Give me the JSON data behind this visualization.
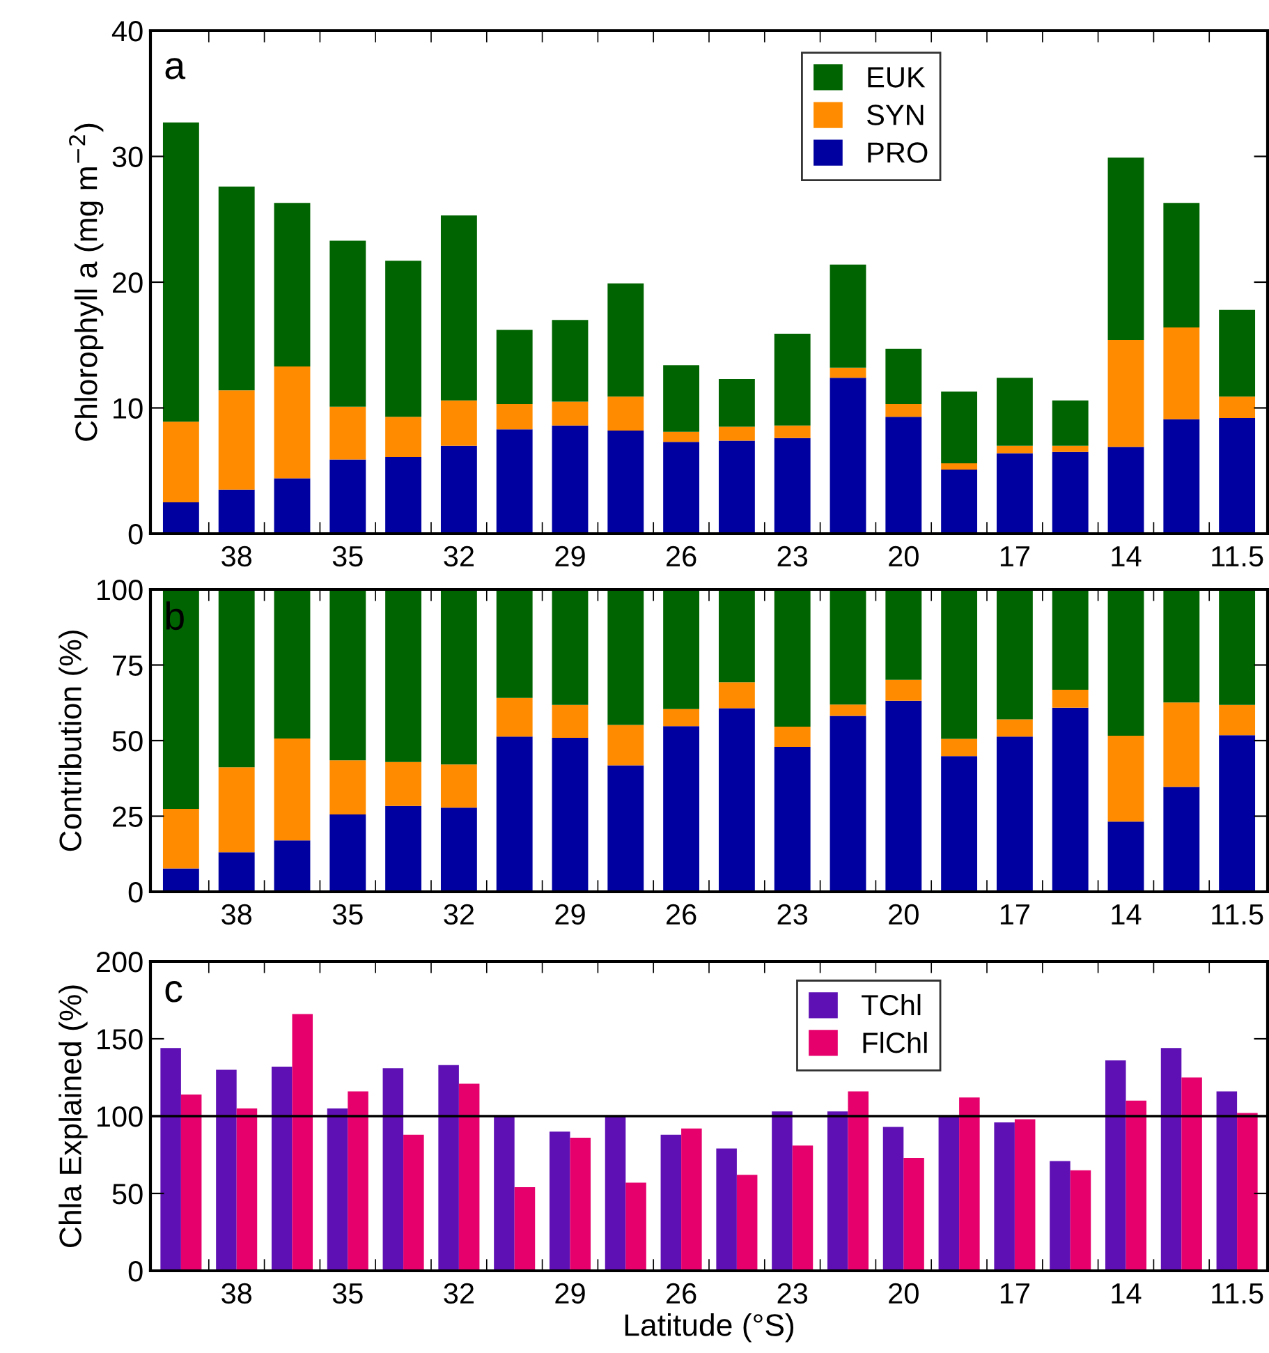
{
  "chart_data": [
    {
      "type": "bar",
      "stacked": true,
      "ylabel": "Chlorophyll a (mg m$^{−2}$)",
      "annotations": [
        "a"
      ],
      "categories": [
        null,
        "38",
        null,
        "35",
        null,
        "32",
        null,
        "29",
        null,
        "26",
        null,
        "23",
        null,
        "20",
        null,
        "17",
        null,
        "14",
        null,
        "11.5"
      ],
      "ylim": [
        0,
        40
      ],
      "yticks": [
        0,
        10,
        20,
        30,
        40
      ],
      "legend": "top right",
      "grid": false,
      "series": [
        {
          "name": "PRO",
          "color": "#0000a0",
          "values": [
            2.5,
            3.5,
            4.4,
            5.9,
            6.1,
            7.0,
            8.3,
            8.6,
            8.2,
            7.3,
            7.4,
            7.6,
            12.4,
            9.3,
            5.1,
            6.4,
            6.5,
            6.9,
            9.1,
            9.2
          ]
        },
        {
          "name": "SYN",
          "color": "#ff8c00",
          "values": [
            6.4,
            7.9,
            8.9,
            4.2,
            3.2,
            3.6,
            2.0,
            1.9,
            2.7,
            0.8,
            1.1,
            1.0,
            0.8,
            1.0,
            0.5,
            0.6,
            0.5,
            8.5,
            7.3,
            1.7
          ]
        },
        {
          "name": "EUK",
          "color": "#006400",
          "values": [
            23.8,
            16.2,
            13.0,
            13.2,
            12.4,
            14.7,
            5.9,
            6.5,
            9.0,
            5.3,
            3.8,
            7.3,
            8.2,
            4.4,
            5.7,
            5.4,
            3.6,
            14.5,
            9.9,
            6.9
          ]
        }
      ]
    },
    {
      "type": "bar",
      "stacked": true,
      "ylabel": "Contribution (%)",
      "annotations": [
        "b"
      ],
      "categories": [
        null,
        "38",
        null,
        "35",
        null,
        "32",
        null,
        "29",
        null,
        "26",
        null,
        "23",
        null,
        "20",
        null,
        "17",
        null,
        "14",
        null,
        "11.5"
      ],
      "ylim": [
        0,
        100
      ],
      "yticks": [
        0,
        25,
        50,
        75,
        100
      ],
      "legend": false,
      "grid": false,
      "series": [
        {
          "color": "#0000a0",
          "values": [
            7.7,
            13.1,
            17.0,
            25.6,
            28.4,
            27.8,
            51.3,
            50.9,
            41.8,
            54.8,
            60.7,
            47.9,
            58.2,
            63.2,
            44.9,
            51.3,
            60.9,
            23.2,
            34.7,
            51.8
          ]
        },
        {
          "color": "#ff8c00",
          "values": [
            19.7,
            28.1,
            33.7,
            17.9,
            14.5,
            14.3,
            12.8,
            10.9,
            13.4,
            5.6,
            8.6,
            6.7,
            3.7,
            6.9,
            5.7,
            5.7,
            5.9,
            28.4,
            27.9,
            10.0
          ]
        },
        {
          "color": "#006400",
          "values": [
            72.6,
            58.8,
            49.3,
            56.5,
            57.1,
            57.9,
            35.9,
            38.2,
            44.8,
            39.6,
            30.7,
            45.4,
            38.1,
            29.9,
            49.4,
            43.0,
            33.2,
            48.4,
            37.4,
            38.2
          ]
        }
      ]
    },
    {
      "type": "bar",
      "stacked": false,
      "ylabel": "Chla Explained (%)",
      "xlabel": "Latitude (°S)",
      "annotations": [
        "c"
      ],
      "categories": [
        null,
        "38",
        null,
        "35",
        null,
        "32",
        null,
        "29",
        null,
        "26",
        null,
        "23",
        null,
        "20",
        null,
        "17",
        null,
        "14",
        null,
        "11.5"
      ],
      "ylim": [
        0,
        200
      ],
      "yticks": [
        0,
        50,
        100,
        150,
        200
      ],
      "legend": "top right",
      "grid": false,
      "ref_lines": [
        {
          "axis": "y",
          "value": 100,
          "color": "#000000"
        }
      ],
      "series": [
        {
          "name": "TChl",
          "color": "#5e10b4",
          "values": [
            144,
            130,
            132,
            105,
            131,
            133,
            100,
            90,
            100,
            88,
            79,
            103,
            103,
            93,
            100,
            96,
            71,
            136,
            144,
            116
          ]
        },
        {
          "name": "FlChl",
          "color": "#e6006c",
          "values": [
            114,
            105,
            166,
            116,
            88,
            121,
            54,
            86,
            57,
            92,
            62,
            81,
            116,
            73,
            112,
            98,
            65,
            110,
            125,
            102
          ]
        }
      ]
    }
  ]
}
